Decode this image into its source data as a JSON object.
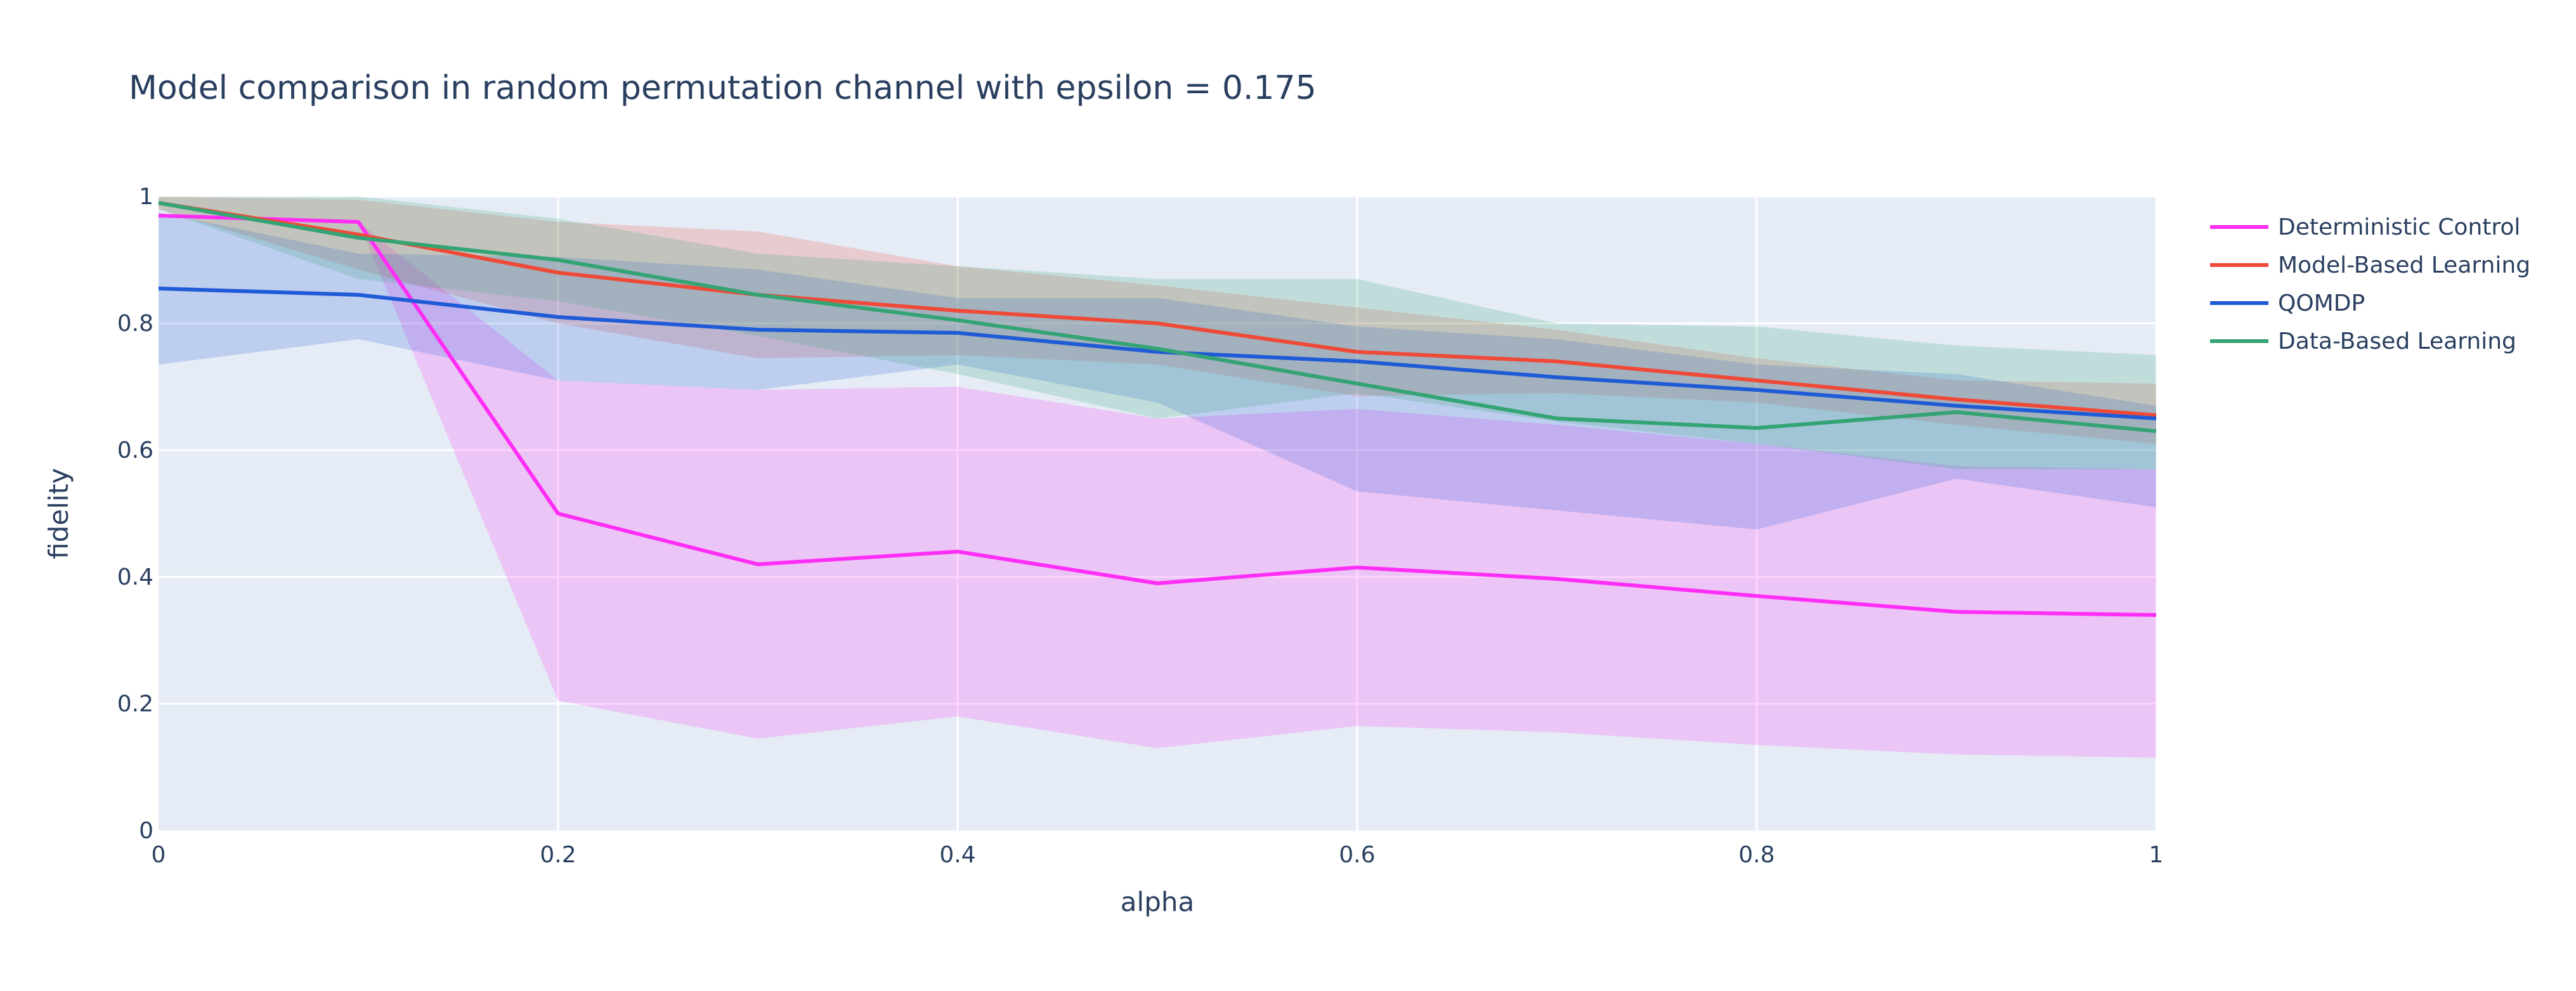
{
  "chart_data": {
    "type": "line",
    "title": "Model comparison in random permutation channel with epsilon = 0.175",
    "xlabel": "alpha",
    "ylabel": "fidelity",
    "xlim": [
      0,
      1
    ],
    "ylim": [
      0,
      1
    ],
    "xticks": [
      0,
      0.2,
      0.4,
      0.6,
      0.8,
      1
    ],
    "xtick_labels": [
      "0",
      "0.2",
      "0.4",
      "0.6",
      "0.8",
      "1"
    ],
    "yticks": [
      0,
      0.2,
      0.4,
      0.6,
      0.8,
      1
    ],
    "ytick_labels": [
      "0",
      "0.2",
      "0.4",
      "0.6",
      "0.8",
      "1"
    ],
    "grid": true,
    "legend_position": "right",
    "x": [
      0,
      0.1,
      0.2,
      0.3,
      0.4,
      0.5,
      0.6,
      0.7,
      0.8,
      0.9,
      1.0
    ],
    "series": [
      {
        "name": "Deterministic Control",
        "color": "#ff2ef6",
        "values": [
          0.97,
          0.96,
          0.5,
          0.42,
          0.44,
          0.39,
          0.415,
          0.397,
          0.37,
          0.345,
          0.34
        ],
        "upper": [
          0.97,
          0.96,
          0.71,
          0.695,
          0.7,
          0.65,
          0.665,
          0.64,
          0.61,
          0.575,
          0.57
        ],
        "lower": [
          0.97,
          0.96,
          0.205,
          0.145,
          0.18,
          0.13,
          0.165,
          0.155,
          0.135,
          0.12,
          0.115
        ]
      },
      {
        "name": "Model-Based Learning",
        "color": "#ef4a38",
        "values": [
          0.99,
          0.94,
          0.88,
          0.845,
          0.82,
          0.8,
          0.755,
          0.74,
          0.71,
          0.68,
          0.655
        ],
        "upper": [
          1.0,
          0.995,
          0.96,
          0.945,
          0.89,
          0.86,
          0.825,
          0.79,
          0.745,
          0.71,
          0.705
        ],
        "lower": [
          0.98,
          0.885,
          0.8,
          0.745,
          0.75,
          0.735,
          0.685,
          0.69,
          0.675,
          0.64,
          0.61
        ]
      },
      {
        "name": "QOMDP",
        "color": "#1f5bd6",
        "values": [
          0.855,
          0.845,
          0.81,
          0.79,
          0.785,
          0.755,
          0.74,
          0.715,
          0.695,
          0.67,
          0.65
        ],
        "upper": [
          0.975,
          0.91,
          0.905,
          0.885,
          0.84,
          0.84,
          0.795,
          0.775,
          0.735,
          0.72,
          0.67
        ],
        "lower": [
          0.735,
          0.775,
          0.71,
          0.695,
          0.735,
          0.675,
          0.535,
          0.505,
          0.475,
          0.555,
          0.51
        ]
      },
      {
        "name": "Data-Based Learning",
        "color": "#34a474",
        "values": [
          0.99,
          0.935,
          0.9,
          0.845,
          0.805,
          0.76,
          0.705,
          0.65,
          0.635,
          0.66,
          0.63
        ],
        "upper": [
          1.0,
          1.0,
          0.965,
          0.91,
          0.89,
          0.87,
          0.87,
          0.8,
          0.795,
          0.765,
          0.75
        ],
        "lower": [
          0.98,
          0.87,
          0.835,
          0.78,
          0.72,
          0.65,
          0.69,
          0.645,
          0.61,
          0.57,
          0.57
        ]
      }
    ]
  }
}
